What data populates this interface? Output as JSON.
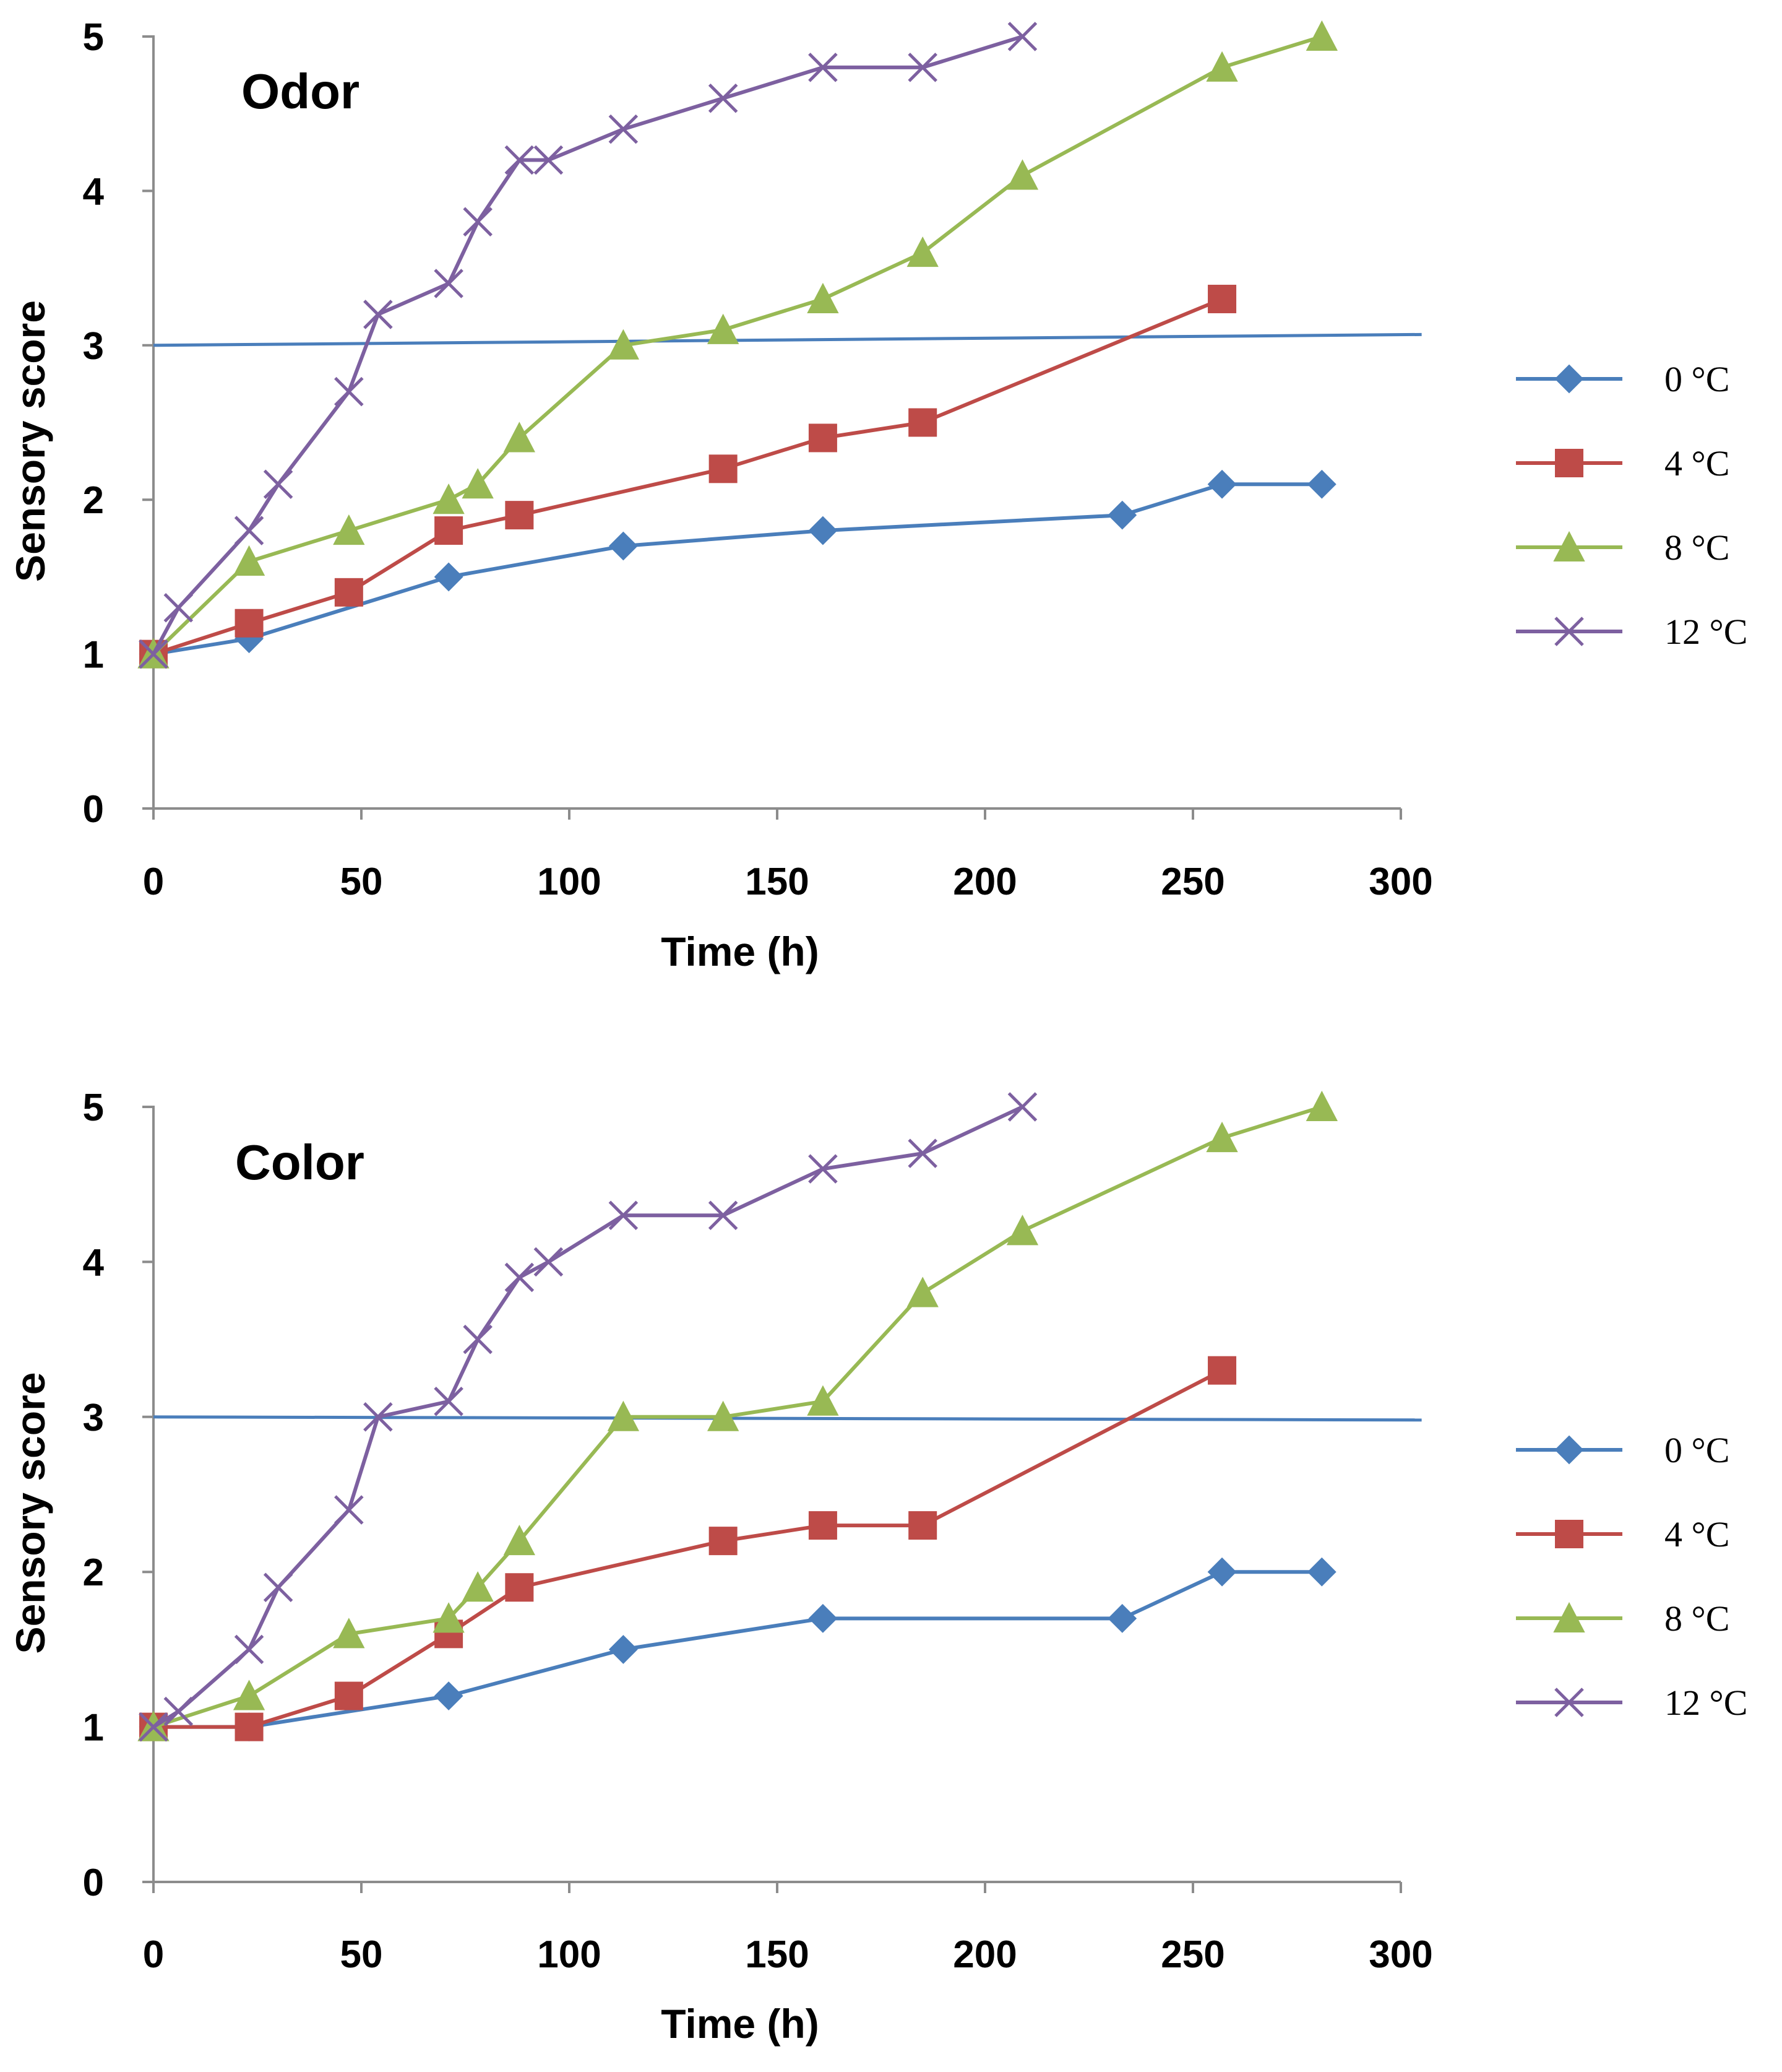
{
  "chart_data": [
    {
      "type": "line",
      "title": "Odor",
      "xlabel": "Time (h)",
      "ylabel": "Sensory score",
      "xlim": [
        0,
        300
      ],
      "ylim": [
        0,
        5
      ],
      "xticks": [
        0,
        50,
        100,
        150,
        200,
        250,
        300
      ],
      "yticks": [
        0,
        1,
        2,
        3,
        4,
        5
      ],
      "grid": false,
      "legend_position": "right",
      "threshold_line": {
        "x": [
          0,
          305
        ],
        "y": [
          3.0,
          3.07
        ],
        "color": "#4A7EBB"
      },
      "series": [
        {
          "name": "0 °C",
          "color": "#4A7EBB",
          "marker": "diamond",
          "x": [
            0,
            23,
            71,
            113,
            161,
            233,
            257,
            281
          ],
          "y": [
            1.0,
            1.1,
            1.5,
            1.7,
            1.8,
            1.9,
            2.1,
            2.1
          ]
        },
        {
          "name": "4 °C",
          "color": "#BE4B48",
          "marker": "square",
          "x": [
            0,
            23,
            47,
            71,
            88,
            137,
            161,
            185,
            257
          ],
          "y": [
            1.0,
            1.2,
            1.4,
            1.8,
            1.9,
            2.2,
            2.4,
            2.5,
            3.3
          ]
        },
        {
          "name": "8 °C",
          "color": "#98B954",
          "marker": "triangle",
          "x": [
            0,
            23,
            47,
            71,
            78,
            88,
            113,
            137,
            161,
            185,
            209,
            257,
            281
          ],
          "y": [
            1.0,
            1.6,
            1.8,
            2.0,
            2.1,
            2.4,
            3.0,
            3.1,
            3.3,
            3.6,
            4.1,
            4.8,
            5.0
          ]
        },
        {
          "name": "12 °C",
          "color": "#7D60A0",
          "marker": "x",
          "x": [
            0,
            6,
            23,
            30,
            47,
            54,
            71,
            78,
            88,
            95,
            113,
            137,
            161,
            185,
            209
          ],
          "y": [
            1.0,
            1.3,
            1.8,
            2.1,
            2.7,
            3.2,
            3.4,
            3.8,
            4.2,
            4.2,
            4.4,
            4.6,
            4.8,
            4.8,
            5.0
          ]
        }
      ]
    },
    {
      "type": "line",
      "title": "Color",
      "xlabel": "Time (h)",
      "ylabel": "Sensory score",
      "xlim": [
        0,
        300
      ],
      "ylim": [
        0,
        5
      ],
      "xticks": [
        0,
        50,
        100,
        150,
        200,
        250,
        300
      ],
      "yticks": [
        0,
        1,
        2,
        3,
        4,
        5
      ],
      "grid": false,
      "legend_position": "right",
      "threshold_line": {
        "x": [
          0,
          305
        ],
        "y": [
          3.0,
          2.98
        ],
        "color": "#4A7EBB"
      },
      "series": [
        {
          "name": "0 °C",
          "color": "#4A7EBB",
          "marker": "diamond",
          "x": [
            0,
            23,
            71,
            113,
            161,
            233,
            257,
            281
          ],
          "y": [
            1.0,
            1.0,
            1.2,
            1.5,
            1.7,
            1.7,
            2.0,
            2.0
          ]
        },
        {
          "name": "4 °C",
          "color": "#BE4B48",
          "marker": "square",
          "x": [
            0,
            23,
            47,
            71,
            88,
            137,
            161,
            185,
            257
          ],
          "y": [
            1.0,
            1.0,
            1.2,
            1.6,
            1.9,
            2.2,
            2.3,
            2.3,
            3.3
          ]
        },
        {
          "name": "8 °C",
          "color": "#98B954",
          "marker": "triangle",
          "x": [
            0,
            23,
            47,
            71,
            78,
            88,
            113,
            137,
            161,
            185,
            209,
            257,
            281
          ],
          "y": [
            1.0,
            1.2,
            1.6,
            1.7,
            1.9,
            2.2,
            3.0,
            3.0,
            3.1,
            3.8,
            4.2,
            4.8,
            5.0
          ]
        },
        {
          "name": "12 °C",
          "color": "#7D60A0",
          "marker": "x",
          "x": [
            0,
            6,
            23,
            30,
            47,
            54,
            71,
            78,
            88,
            95,
            113,
            137,
            161,
            185,
            209
          ],
          "y": [
            1.0,
            1.1,
            1.5,
            1.9,
            2.4,
            3.0,
            3.1,
            3.5,
            3.9,
            4.0,
            4.3,
            4.3,
            4.6,
            4.7,
            5.0
          ]
        }
      ]
    }
  ]
}
